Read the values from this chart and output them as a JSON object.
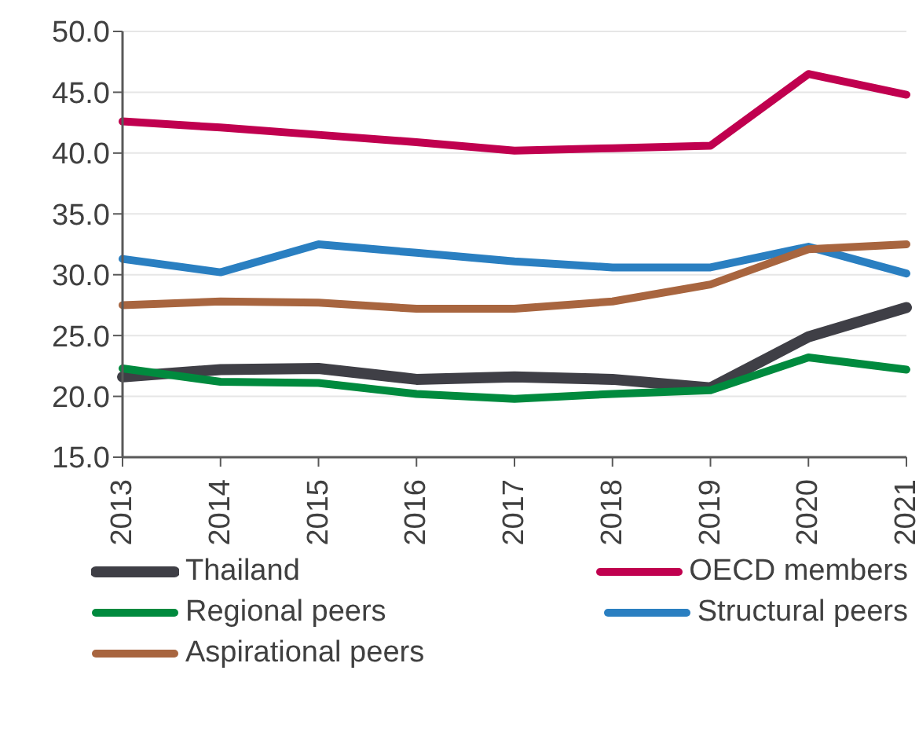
{
  "chart_data": {
    "type": "line",
    "categories": [
      "2013",
      "2014",
      "2015",
      "2016",
      "2017",
      "2018",
      "2019",
      "2020",
      "2021"
    ],
    "series": [
      {
        "name": "Thailand",
        "color": "#3f3f46",
        "values": [
          21.6,
          22.2,
          22.3,
          21.4,
          21.6,
          21.4,
          20.7,
          24.9,
          27.3
        ]
      },
      {
        "name": "OECD members",
        "color": "#c0004f",
        "values": [
          42.6,
          42.1,
          41.5,
          40.9,
          40.2,
          40.4,
          40.6,
          46.5,
          44.8
        ]
      },
      {
        "name": "Regional peers",
        "color": "#008a3e",
        "values": [
          22.3,
          21.2,
          21.1,
          20.2,
          19.8,
          20.2,
          20.5,
          23.2,
          22.2
        ]
      },
      {
        "name": "Structural peers",
        "color": "#2a7fc1",
        "values": [
          31.3,
          30.2,
          32.5,
          31.8,
          31.1,
          30.6,
          30.6,
          32.3,
          30.1
        ]
      },
      {
        "name": "Aspirational peers",
        "color": "#a8653f",
        "values": [
          27.5,
          27.8,
          27.7,
          27.2,
          27.2,
          27.8,
          29.2,
          32.1,
          32.5
        ]
      }
    ],
    "ylim": [
      15,
      50
    ],
    "yticks": [
      {
        "value": 15,
        "label": "15.0"
      },
      {
        "value": 20,
        "label": "20.0"
      },
      {
        "value": 25,
        "label": "25.0"
      },
      {
        "value": 30,
        "label": "30.0"
      },
      {
        "value": 35,
        "label": "35.0"
      },
      {
        "value": 40,
        "label": "40.0"
      },
      {
        "value": 45,
        "label": "45.0"
      },
      {
        "value": 50,
        "label": "50.0"
      }
    ],
    "grid": "y",
    "legend": "bottom",
    "marker": "none",
    "line_style": "solid"
  }
}
